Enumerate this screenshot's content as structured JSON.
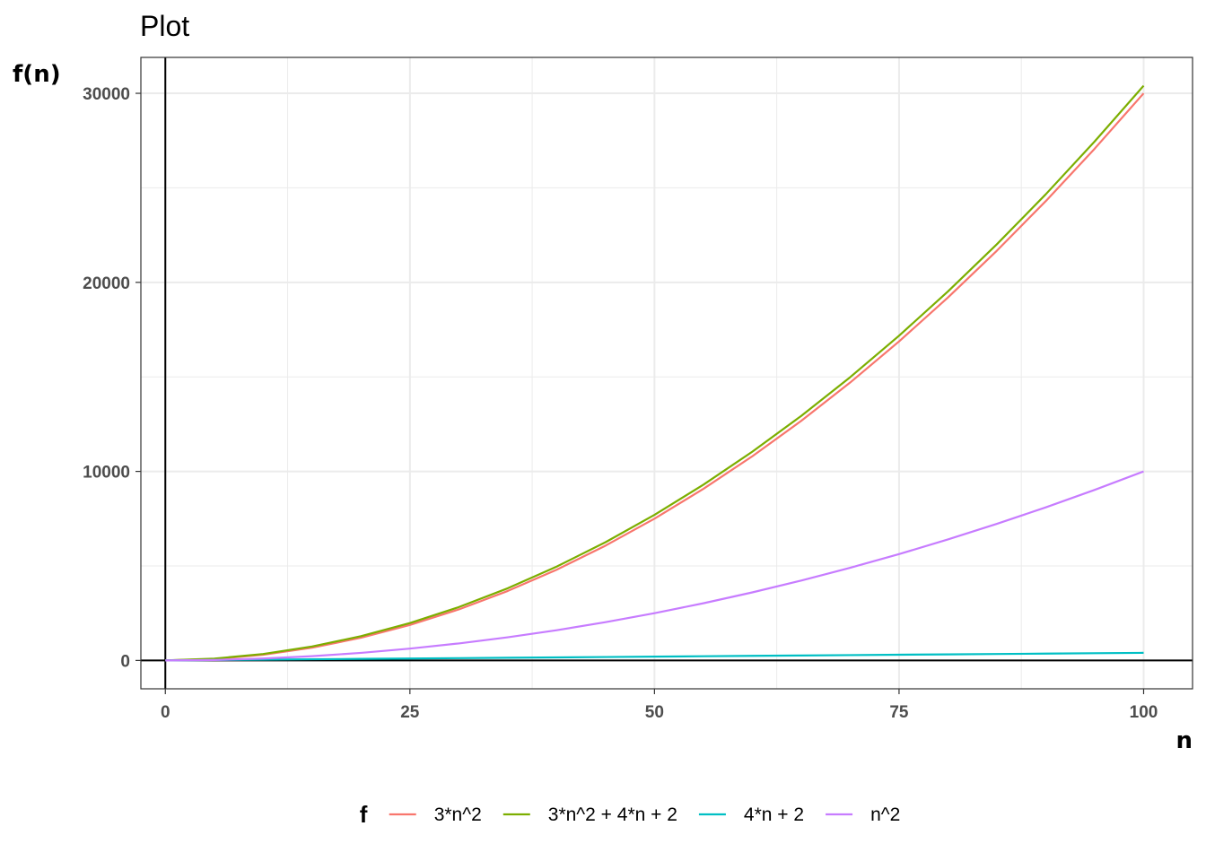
{
  "chart_data": {
    "type": "line",
    "title": "Plot",
    "xlabel": "n",
    "ylabel": "f(n)",
    "xlim": [
      -2.5,
      105
    ],
    "ylim": [
      -1500,
      31900
    ],
    "x_ticks": [
      0,
      25,
      50,
      75,
      100
    ],
    "y_ticks": [
      0,
      10000,
      20000,
      30000
    ],
    "grid": true,
    "legend_title": "f",
    "legend_position": "bottom",
    "x": [
      0,
      5,
      10,
      15,
      20,
      25,
      30,
      35,
      40,
      45,
      50,
      55,
      60,
      65,
      70,
      75,
      80,
      85,
      90,
      95,
      100
    ],
    "series": [
      {
        "name": "3*n^2",
        "color": "#F8766D",
        "values": [
          0,
          75,
          300,
          675,
          1200,
          1875,
          2700,
          3675,
          4800,
          6075,
          7500,
          9075,
          10800,
          12675,
          14700,
          16875,
          19200,
          21675,
          24300,
          27075,
          30000
        ]
      },
      {
        "name": "3*n^2 + 4*n + 2",
        "color": "#7CAE00",
        "values": [
          2,
          97,
          342,
          737,
          1282,
          1977,
          2822,
          3817,
          4962,
          6257,
          7702,
          9297,
          11042,
          12937,
          14982,
          17177,
          19522,
          22017,
          24662,
          27457,
          30402
        ]
      },
      {
        "name": "4*n + 2",
        "color": "#00BFC4",
        "values": [
          2,
          22,
          42,
          62,
          82,
          102,
          122,
          142,
          162,
          182,
          202,
          222,
          242,
          262,
          282,
          302,
          322,
          342,
          362,
          382,
          402
        ]
      },
      {
        "name": "n^2",
        "color": "#C77CFF",
        "values": [
          0,
          25,
          100,
          225,
          400,
          625,
          900,
          1225,
          1600,
          2025,
          2500,
          3025,
          3600,
          4225,
          4900,
          5625,
          6400,
          7225,
          8100,
          9025,
          10000
        ]
      }
    ]
  }
}
